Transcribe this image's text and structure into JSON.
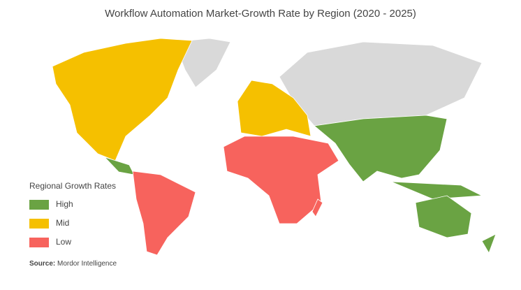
{
  "title": "Workflow Automation Market-Growth Rate by Region (2020 - 2025)",
  "legend": {
    "title": "Regional Growth Rates",
    "items": [
      {
        "label": "High",
        "color": "#6aa343"
      },
      {
        "label": "Mid",
        "color": "#f5c000"
      },
      {
        "label": "Low",
        "color": "#f7635d"
      }
    ]
  },
  "source": {
    "label": "Source:",
    "text": "Mordor Intelligence"
  }
}
